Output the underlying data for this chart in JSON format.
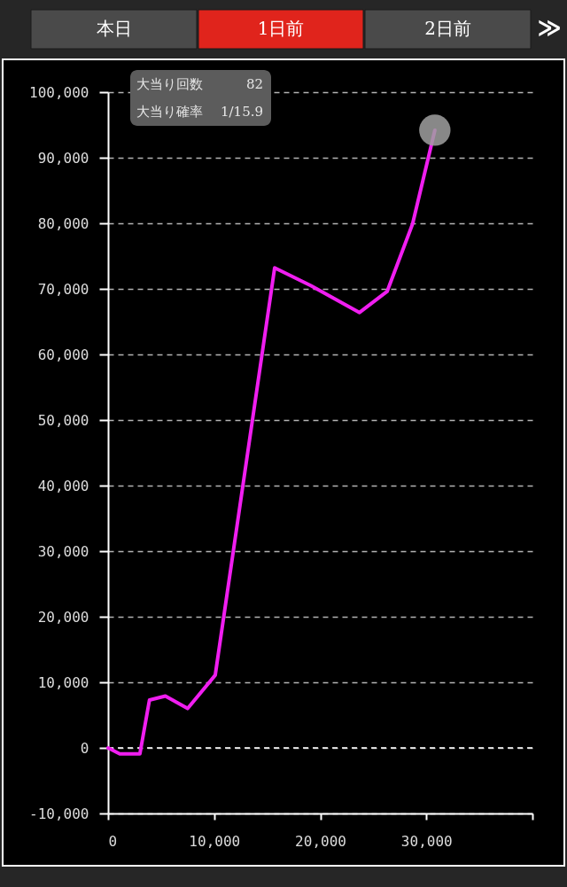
{
  "chart_data": {
    "type": "line",
    "annotations": [
      "本日",
      "1日前",
      "2日前",
      "≫",
      "大当り回数",
      "82",
      "大当り確率",
      "1/15.9"
    ],
    "x": [
      0,
      1100,
      3000,
      3900,
      5400,
      7500,
      10100,
      15700,
      19100,
      23700,
      26300,
      28700,
      30800
    ],
    "series": [
      {
        "color": "#f01ef0",
        "values": [
          0,
          -900,
          -900,
          7300,
          7900,
          6000,
          11100,
          73200,
          70500,
          66400,
          69600,
          79900,
          94200
        ]
      },
      {
        "type": "scatter",
        "color": "#a0a0a0",
        "x": [
          30800
        ],
        "values": [
          94200
        ]
      }
    ],
    "xlim": [
      0,
      40000
    ],
    "xticks": [
      0,
      {
        "value": 10000,
        "label": "10,000"
      },
      {
        "value": 20000,
        "label": "20,000"
      },
      {
        "value": 30000,
        "label": "30,000"
      },
      {
        "value": 40000,
        "label": null
      }
    ],
    "ylim": [
      -10000,
      100000
    ],
    "yticks": [
      {
        "value": -10000,
        "label": "-10,000"
      },
      0,
      {
        "value": 10000,
        "label": "10,000"
      },
      {
        "value": 20000,
        "label": "20,000"
      },
      {
        "value": 30000,
        "label": "30,000"
      },
      {
        "value": 40000,
        "label": "40,000"
      },
      {
        "value": 50000,
        "label": "50,000"
      },
      {
        "value": 60000,
        "label": "60,000"
      },
      {
        "value": 70000,
        "label": "70,000"
      },
      {
        "value": 80000,
        "label": "80,000"
      },
      {
        "value": 90000,
        "label": "90,000"
      },
      {
        "value": 100000,
        "label": "100,000"
      }
    ],
    "grid": "y",
    "ref_lines": [
      {
        "axis": "y",
        "value": 0,
        "color": "#ffffff",
        "line_style": "dashed"
      }
    ]
  }
}
